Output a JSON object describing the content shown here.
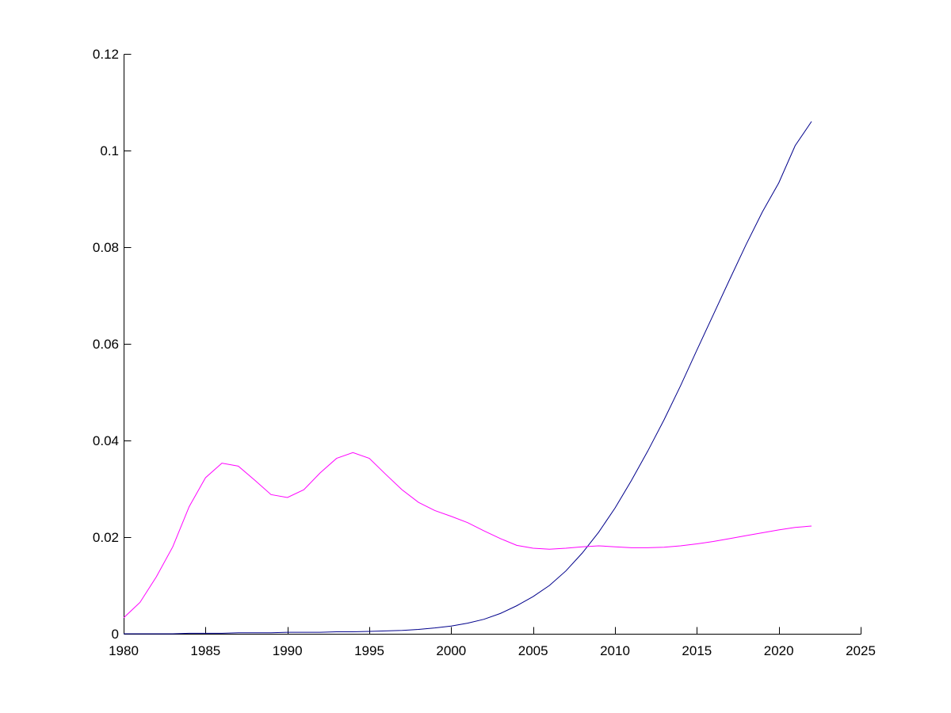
{
  "chart_data": {
    "type": "line",
    "title": "",
    "xlabel": "",
    "ylabel": "",
    "xlim": [
      1980,
      2025
    ],
    "ylim": [
      0,
      0.12
    ],
    "x_ticks": [
      1980,
      1985,
      1990,
      1995,
      2000,
      2005,
      2010,
      2015,
      2020,
      2025
    ],
    "x_tick_labels": [
      "1980",
      "1985",
      "1990",
      "1995",
      "2000",
      "2005",
      "2010",
      "2015",
      "2020",
      "2025"
    ],
    "y_ticks": [
      0,
      0.02,
      0.04,
      0.06,
      0.08,
      0.1,
      0.12
    ],
    "y_tick_labels": [
      "0",
      "0.02",
      "0.04",
      "0.06",
      "0.08",
      "0.1",
      "0.12"
    ],
    "grid": false,
    "legend": false,
    "series": [
      {
        "color": "#00008b",
        "x": [
          1980,
          1981,
          1982,
          1983,
          1984,
          1985,
          1986,
          1987,
          1988,
          1989,
          1990,
          1991,
          1992,
          1993,
          1994,
          1995,
          1996,
          1997,
          1998,
          1999,
          2000,
          2001,
          2002,
          2003,
          2004,
          2005,
          2006,
          2007,
          2008,
          2009,
          2010,
          2011,
          2012,
          2013,
          2014,
          2015,
          2016,
          2017,
          2018,
          2019,
          2020,
          2021,
          2022
        ],
        "y": [
          0.0,
          0.0,
          0.0,
          0.0,
          0.0001,
          0.0001,
          0.0001,
          0.0002,
          0.0002,
          0.0002,
          0.0003,
          0.0003,
          0.0003,
          0.0004,
          0.0004,
          0.0005,
          0.0006,
          0.0007,
          0.0009,
          0.0012,
          0.0016,
          0.0022,
          0.003,
          0.0042,
          0.0058,
          0.0077,
          0.01,
          0.013,
          0.0167,
          0.021,
          0.026,
          0.0317,
          0.0378,
          0.0443,
          0.0513,
          0.0587,
          0.066,
          0.0733,
          0.0805,
          0.0873,
          0.0933,
          0.101,
          0.106
        ]
      },
      {
        "color": "#ff00ff",
        "x": [
          1980,
          1981,
          1982,
          1983,
          1984,
          1985,
          1986,
          1987,
          1988,
          1989,
          1990,
          1991,
          1992,
          1993,
          1994,
          1995,
          1996,
          1997,
          1998,
          1999,
          2000,
          2001,
          2002,
          2003,
          2004,
          2005,
          2006,
          2007,
          2008,
          2009,
          2010,
          2011,
          2012,
          2013,
          2014,
          2015,
          2016,
          2017,
          2018,
          2019,
          2020,
          2021,
          2022
        ],
        "y": [
          0.0033,
          0.0065,
          0.0118,
          0.018,
          0.0263,
          0.0323,
          0.0353,
          0.0347,
          0.0318,
          0.0288,
          0.0282,
          0.0298,
          0.0333,
          0.0363,
          0.0375,
          0.0363,
          0.033,
          0.0298,
          0.0272,
          0.0255,
          0.0243,
          0.023,
          0.0213,
          0.0197,
          0.0183,
          0.0177,
          0.0175,
          0.0177,
          0.018,
          0.0182,
          0.018,
          0.0178,
          0.0178,
          0.0179,
          0.0182,
          0.0186,
          0.0191,
          0.0197,
          0.0203,
          0.0209,
          0.0215,
          0.022,
          0.0223
        ]
      }
    ]
  }
}
